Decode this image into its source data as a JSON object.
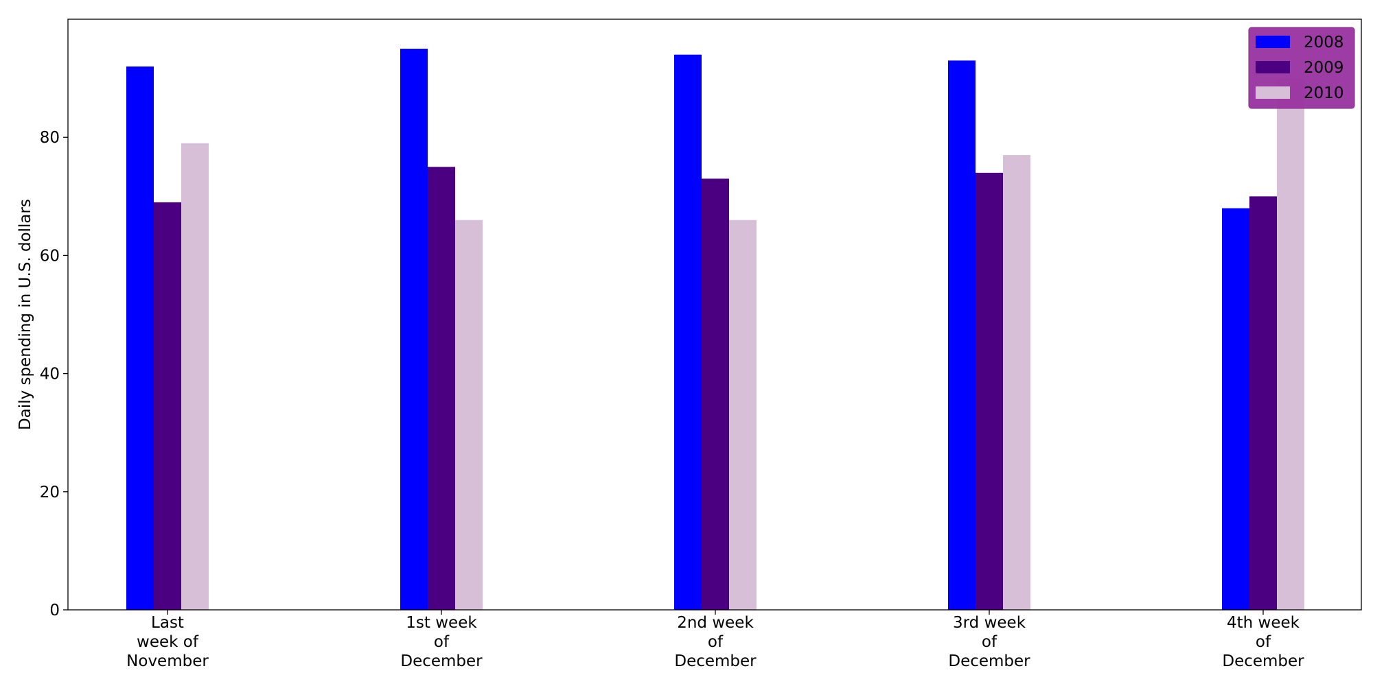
{
  "chart_data": {
    "type": "bar",
    "title": "",
    "xlabel": "",
    "ylabel": "Daily spending in U.S. dollars",
    "categories": [
      [
        "Last",
        "week of",
        "November"
      ],
      [
        "1st week",
        "of",
        "December"
      ],
      [
        "2nd week",
        "of",
        "December"
      ],
      [
        "3rd week",
        "of",
        "December"
      ],
      [
        "4th week",
        "of",
        "December"
      ]
    ],
    "series": [
      {
        "name": "2008",
        "color": "#0000ff",
        "values": [
          92,
          95,
          94,
          93,
          68
        ]
      },
      {
        "name": "2009",
        "color": "#4b0082",
        "values": [
          69,
          75,
          73,
          74,
          70
        ]
      },
      {
        "name": "2010",
        "color": "#d8bfd8",
        "values": [
          79,
          66,
          66,
          77,
          90
        ]
      }
    ],
    "ylim": [
      0,
      100
    ],
    "yticks": [
      "0",
      "20",
      "40",
      "60",
      "80"
    ],
    "grid": false,
    "legend": {
      "placement": "top-right",
      "background": "#9932a0"
    }
  }
}
